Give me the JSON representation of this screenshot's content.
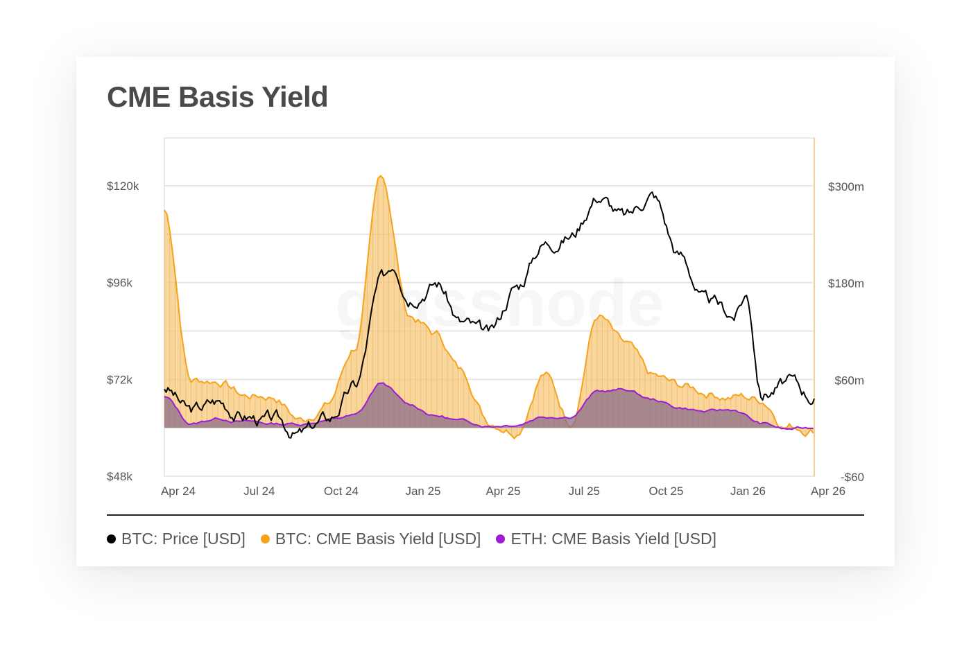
{
  "chart_data": {
    "type": "line",
    "title": "CME Basis Yield",
    "colors": {
      "btc_price": "#000000",
      "btc_basis": "#f7a21b",
      "btc_basis_fill": "#f7c87a",
      "eth_basis": "#a11bd4",
      "grid": "#e6e6e6"
    },
    "x_ticks": [
      "Apr 24",
      "Jul 24",
      "Oct 24",
      "Jan 25",
      "Apr 25",
      "Jul 25",
      "Oct 25",
      "Jan 26",
      "Apr 26"
    ],
    "left_axis": {
      "ticks": [
        "$48k",
        "$72k",
        "$96k",
        "$120k"
      ],
      "range": [
        48000,
        120000
      ],
      "tick_values": [
        48000,
        72000,
        96000,
        120000
      ]
    },
    "right_axis": {
      "ticks": [
        "-$60",
        "$60m",
        "$180m",
        "$300m"
      ],
      "tick_values": [
        -60,
        60,
        180,
        300
      ]
    },
    "x_range": [
      "2024-04-01",
      "2026-04-01"
    ],
    "grid": true,
    "legend_position": "bottom-left",
    "watermark": "glassnode",
    "series": [
      {
        "name": "BTC: Price [USD]",
        "axis": "left",
        "style": "line",
        "x": [
          "2024-04-01",
          "2024-05-01",
          "2024-06-01",
          "2024-07-01",
          "2024-08-01",
          "2024-09-01",
          "2024-10-01",
          "2024-11-01",
          "2024-12-01",
          "2024-12-15",
          "2025-01-01",
          "2025-02-01",
          "2025-03-01",
          "2025-04-01",
          "2025-05-01",
          "2025-06-01",
          "2025-07-01",
          "2025-08-01",
          "2025-09-01",
          "2025-10-01",
          "2025-11-01",
          "2025-12-01",
          "2026-01-01",
          "2026-01-15",
          "2026-02-01",
          "2026-03-01",
          "2026-04-01"
        ],
        "values": [
          70000,
          64000,
          66500,
          63000,
          61500,
          58500,
          62000,
          70000,
          96000,
          101000,
          94000,
          96500,
          86000,
          82500,
          95000,
          106000,
          108000,
          118000,
          112000,
          118000,
          103000,
          91000,
          88000,
          93000,
          69000,
          71000,
          68000
        ]
      },
      {
        "name": "BTC: CME Basis Yield [USD]",
        "axis": "right",
        "style": "area",
        "x": [
          "2024-04-01",
          "2024-05-01",
          "2024-06-01",
          "2024-07-01",
          "2024-08-01",
          "2024-09-01",
          "2024-10-01",
          "2024-11-01",
          "2024-12-01",
          "2025-01-01",
          "2025-02-01",
          "2025-03-01",
          "2025-04-01",
          "2025-05-01",
          "2025-06-01",
          "2025-07-01",
          "2025-08-01",
          "2025-09-01",
          "2025-10-01",
          "2025-11-01",
          "2025-12-01",
          "2026-01-01",
          "2026-02-01",
          "2026-03-01",
          "2026-04-01"
        ],
        "values": [
          270,
          60,
          60,
          40,
          40,
          10,
          30,
          100,
          310,
          140,
          115,
          70,
          10,
          0,
          70,
          10,
          140,
          100,
          60,
          50,
          45,
          40,
          35,
          5,
          0
        ]
      },
      {
        "name": "ETH: CME Basis Yield [USD]",
        "axis": "right",
        "style": "area",
        "x": [
          "2024-04-01",
          "2024-05-01",
          "2024-06-01",
          "2024-07-01",
          "2024-08-01",
          "2024-09-01",
          "2024-10-01",
          "2024-11-01",
          "2024-12-01",
          "2025-01-01",
          "2025-02-01",
          "2025-03-01",
          "2025-04-01",
          "2025-05-01",
          "2025-06-01",
          "2025-07-01",
          "2025-08-01",
          "2025-09-01",
          "2025-10-01",
          "2025-11-01",
          "2025-12-01",
          "2026-01-01",
          "2026-02-01",
          "2026-03-01",
          "2026-04-01"
        ],
        "values": [
          38,
          5,
          12,
          8,
          5,
          5,
          10,
          15,
          55,
          28,
          15,
          8,
          3,
          5,
          15,
          15,
          45,
          47,
          35,
          25,
          20,
          22,
          5,
          -2,
          0
        ]
      }
    ]
  }
}
